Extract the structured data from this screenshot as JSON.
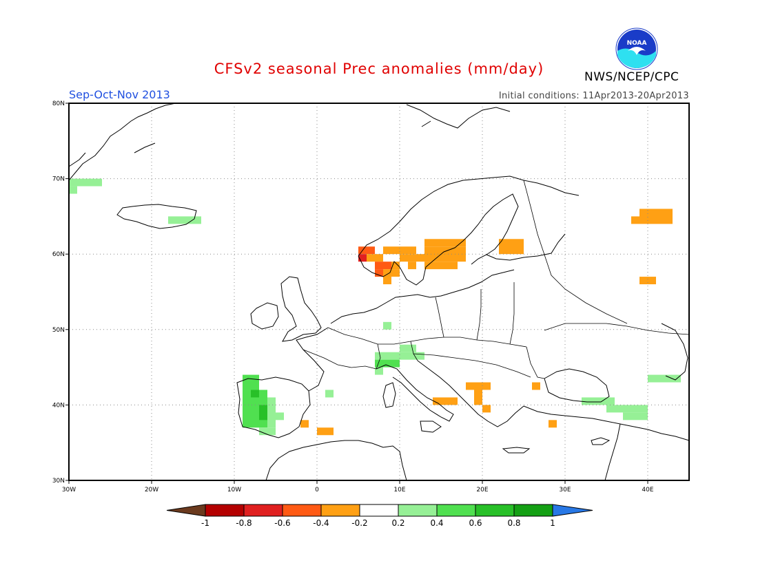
{
  "header": {
    "title": "CFSv2 seasonal Prec anomalies (mm/day)",
    "season": "Sep-Oct-Nov 2013",
    "initial_conditions": "Initial conditions: 11Apr2013-20Apr2013",
    "agency": "NWS/NCEP/CPC",
    "logo_text": "NOAA"
  },
  "colors": {
    "title": "#e00000",
    "season": "#2050e0",
    "land_outline": "#000000",
    "grid": "#888888"
  },
  "map": {
    "lon_range": [
      -30,
      45
    ],
    "lat_range": [
      30,
      80
    ],
    "lon_ticks": [
      {
        "value": -30,
        "label": "30W"
      },
      {
        "value": -20,
        "label": "20W"
      },
      {
        "value": -10,
        "label": "10W"
      },
      {
        "value": 0,
        "label": "0"
      },
      {
        "value": 10,
        "label": "10E"
      },
      {
        "value": 20,
        "label": "20E"
      },
      {
        "value": 30,
        "label": "30E"
      },
      {
        "value": 40,
        "label": "40E"
      }
    ],
    "lat_ticks": [
      {
        "value": 30,
        "label": "30N"
      },
      {
        "value": 40,
        "label": "40N"
      },
      {
        "value": 50,
        "label": "50N"
      },
      {
        "value": 60,
        "label": "60N"
      },
      {
        "value": 70,
        "label": "70N"
      },
      {
        "value": 80,
        "label": "80N"
      }
    ],
    "anomaly_cells": [
      {
        "lon0": -30,
        "lat0": 69,
        "lon1": -26,
        "lat1": 70,
        "value": 0.3
      },
      {
        "lon0": -30,
        "lat0": 68,
        "lon1": -29,
        "lat1": 69,
        "value": 0.3
      },
      {
        "lon0": -18,
        "lat0": 64,
        "lon1": -14,
        "lat1": 65,
        "value": 0.3
      },
      {
        "lon0": 5,
        "lat0": 60,
        "lon1": 7,
        "lat1": 61,
        "value": -0.5
      },
      {
        "lon0": 5,
        "lat0": 59,
        "lon1": 6,
        "lat1": 60,
        "value": -0.7
      },
      {
        "lon0": 6,
        "lat0": 59,
        "lon1": 8,
        "lat1": 60,
        "value": -0.3
      },
      {
        "lon0": 7,
        "lat0": 58,
        "lon1": 9,
        "lat1": 59,
        "value": -0.5
      },
      {
        "lon0": 7,
        "lat0": 57,
        "lon1": 8,
        "lat1": 58,
        "value": -0.5
      },
      {
        "lon0": 9,
        "lat0": 58,
        "lon1": 10,
        "lat1": 59,
        "value": -0.3
      },
      {
        "lon0": 8,
        "lat0": 56,
        "lon1": 9,
        "lat1": 58,
        "value": -0.3
      },
      {
        "lon0": 9,
        "lat0": 57,
        "lon1": 10,
        "lat1": 58,
        "value": -0.3
      },
      {
        "lon0": 8,
        "lat0": 60,
        "lon1": 12,
        "lat1": 61,
        "value": -0.3
      },
      {
        "lon0": 10,
        "lat0": 59,
        "lon1": 13,
        "lat1": 60,
        "value": -0.3
      },
      {
        "lon0": 11,
        "lat0": 58,
        "lon1": 12,
        "lat1": 59,
        "value": -0.3
      },
      {
        "lon0": 13,
        "lat0": 58,
        "lon1": 17,
        "lat1": 59,
        "value": -0.3
      },
      {
        "lon0": 13,
        "lat0": 59,
        "lon1": 18,
        "lat1": 61,
        "value": -0.3
      },
      {
        "lon0": 13,
        "lat0": 61,
        "lon1": 16,
        "lat1": 62,
        "value": -0.3
      },
      {
        "lon0": 16,
        "lat0": 61,
        "lon1": 18,
        "lat1": 62,
        "value": -0.3
      },
      {
        "lon0": 22,
        "lat0": 60,
        "lon1": 25,
        "lat1": 62,
        "value": -0.3
      },
      {
        "lon0": 38,
        "lat0": 64,
        "lon1": 39,
        "lat1": 65,
        "value": -0.3
      },
      {
        "lon0": 39,
        "lat0": 64,
        "lon1": 43,
        "lat1": 66,
        "value": -0.3
      },
      {
        "lon0": 39,
        "lat0": 56,
        "lon1": 41,
        "lat1": 57,
        "value": -0.3
      },
      {
        "lon0": 8,
        "lat0": 50,
        "lon1": 9,
        "lat1": 51,
        "value": 0.3
      },
      {
        "lon0": 10,
        "lat0": 47,
        "lon1": 12,
        "lat1": 48,
        "value": 0.3
      },
      {
        "lon0": 7,
        "lat0": 46,
        "lon1": 12,
        "lat1": 47,
        "value": 0.3
      },
      {
        "lon0": 12,
        "lat0": 46,
        "lon1": 13,
        "lat1": 47,
        "value": 0.3
      },
      {
        "lon0": 7,
        "lat0": 45,
        "lon1": 10,
        "lat1": 46,
        "value": 0.5
      },
      {
        "lon0": 7,
        "lat0": 44,
        "lon1": 8,
        "lat1": 45,
        "value": 0.3
      },
      {
        "lon0": -9,
        "lat0": 42,
        "lon1": -7,
        "lat1": 44,
        "value": 0.5
      },
      {
        "lon0": -9,
        "lat0": 37,
        "lon1": -6,
        "lat1": 42,
        "value": 0.5
      },
      {
        "lon0": -8,
        "lat0": 41,
        "lon1": -7,
        "lat1": 42,
        "value": 0.7
      },
      {
        "lon0": -7,
        "lat0": 38,
        "lon1": -6,
        "lat1": 40,
        "value": 0.7
      },
      {
        "lon0": -6,
        "lat0": 37,
        "lon1": -5,
        "lat1": 41,
        "value": 0.3
      },
      {
        "lon0": -5,
        "lat0": 38,
        "lon1": -4,
        "lat1": 39,
        "value": 0.3
      },
      {
        "lon0": -7,
        "lat0": 36,
        "lon1": -5,
        "lat1": 37,
        "value": 0.3
      },
      {
        "lon0": 1,
        "lat0": 41,
        "lon1": 2,
        "lat1": 42,
        "value": 0.3
      },
      {
        "lon0": 14,
        "lat0": 40,
        "lon1": 17,
        "lat1": 41,
        "value": -0.3
      },
      {
        "lon0": 18,
        "lat0": 42,
        "lon1": 21,
        "lat1": 43,
        "value": -0.3
      },
      {
        "lon0": 19,
        "lat0": 40,
        "lon1": 20,
        "lat1": 42,
        "value": -0.3
      },
      {
        "lon0": 20,
        "lat0": 39,
        "lon1": 21,
        "lat1": 40,
        "value": -0.3
      },
      {
        "lon0": 26,
        "lat0": 42,
        "lon1": 27,
        "lat1": 43,
        "value": -0.3
      },
      {
        "lon0": 28,
        "lat0": 37,
        "lon1": 29,
        "lat1": 38,
        "value": -0.3
      },
      {
        "lon0": -2,
        "lat0": 37,
        "lon1": -1,
        "lat1": 38,
        "value": -0.3
      },
      {
        "lon0": 0,
        "lat0": 36,
        "lon1": 2,
        "lat1": 37,
        "value": -0.3
      },
      {
        "lon0": 32,
        "lat0": 40,
        "lon1": 36,
        "lat1": 41,
        "value": 0.3
      },
      {
        "lon0": 35,
        "lat0": 39,
        "lon1": 40,
        "lat1": 40,
        "value": 0.3
      },
      {
        "lon0": 37,
        "lat0": 38,
        "lon1": 40,
        "lat1": 39,
        "value": 0.3
      },
      {
        "lon0": 40,
        "lat0": 43,
        "lon1": 44,
        "lat1": 44,
        "value": 0.3
      }
    ]
  },
  "colorbar": {
    "bins": [
      {
        "color": "#6b3a1e"
      },
      {
        "color": "#b40000"
      },
      {
        "color": "#e02020"
      },
      {
        "color": "#ff5a14"
      },
      {
        "color": "#ffa014"
      },
      {
        "color": "#ffffff"
      },
      {
        "color": "#96f096"
      },
      {
        "color": "#50e050"
      },
      {
        "color": "#28c028"
      },
      {
        "color": "#14a014"
      },
      {
        "color": "#2878e6"
      }
    ],
    "labels": [
      "-1",
      "-0.8",
      "-0.6",
      "-0.4",
      "-0.2",
      "0.2",
      "0.4",
      "0.6",
      "0.8",
      "1"
    ]
  }
}
